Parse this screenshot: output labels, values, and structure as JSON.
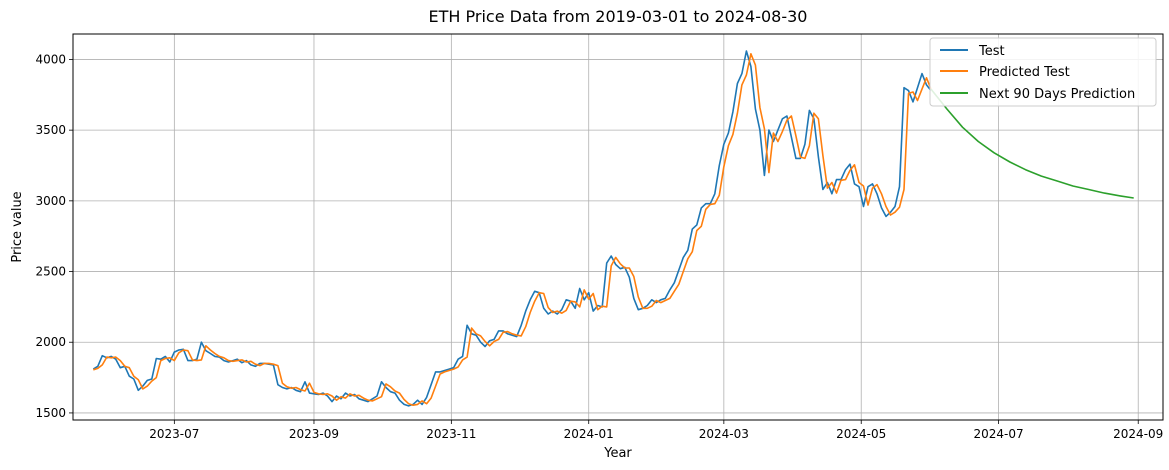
{
  "chart_data": {
    "type": "line",
    "title": "ETH Price Data from 2019-03-01 to 2024-08-30",
    "xlabel": "Year",
    "ylabel": "Price value",
    "x_type": "date",
    "xlim": [
      "2023-05-17",
      "2024-09-12"
    ],
    "ylim": [
      1450,
      4180
    ],
    "xticks": [
      "2023-07-01",
      "2023-09-01",
      "2023-11-01",
      "2024-01-01",
      "2024-03-01",
      "2024-05-01",
      "2024-07-01",
      "2024-09-01"
    ],
    "xtick_labels": [
      "2023-07",
      "2023-09",
      "2023-11",
      "2024-01",
      "2024-03",
      "2024-05",
      "2024-07",
      "2024-09"
    ],
    "yticks": [
      1500,
      2000,
      2500,
      3000,
      3500,
      4000
    ],
    "ytick_labels": [
      "1500",
      "2000",
      "2500",
      "3000",
      "3500",
      "4000"
    ],
    "grid": true,
    "legend_position": "top-right",
    "series": [
      {
        "name": "Test",
        "color": "#1f77b4",
        "x": [
          "2023-05-26",
          "2023-05-28",
          "2023-05-30",
          "2023-06-01",
          "2023-06-03",
          "2023-06-05",
          "2023-06-07",
          "2023-06-09",
          "2023-06-11",
          "2023-06-13",
          "2023-06-15",
          "2023-06-17",
          "2023-06-19",
          "2023-06-21",
          "2023-06-23",
          "2023-06-25",
          "2023-06-27",
          "2023-06-29",
          "2023-07-01",
          "2023-07-03",
          "2023-07-05",
          "2023-07-07",
          "2023-07-09",
          "2023-07-11",
          "2023-07-13",
          "2023-07-15",
          "2023-07-17",
          "2023-07-19",
          "2023-07-21",
          "2023-07-23",
          "2023-07-25",
          "2023-07-27",
          "2023-07-29",
          "2023-07-31",
          "2023-08-02",
          "2023-08-04",
          "2023-08-06",
          "2023-08-08",
          "2023-08-10",
          "2023-08-12",
          "2023-08-14",
          "2023-08-16",
          "2023-08-18",
          "2023-08-20",
          "2023-08-22",
          "2023-08-24",
          "2023-08-26",
          "2023-08-28",
          "2023-08-30",
          "2023-09-01",
          "2023-09-03",
          "2023-09-05",
          "2023-09-07",
          "2023-09-09",
          "2023-09-11",
          "2023-09-13",
          "2023-09-15",
          "2023-09-17",
          "2023-09-19",
          "2023-09-21",
          "2023-09-23",
          "2023-09-25",
          "2023-09-27",
          "2023-09-29",
          "2023-10-01",
          "2023-10-03",
          "2023-10-05",
          "2023-10-07",
          "2023-10-09",
          "2023-10-11",
          "2023-10-13",
          "2023-10-15",
          "2023-10-17",
          "2023-10-19",
          "2023-10-21",
          "2023-10-23",
          "2023-10-25",
          "2023-10-27",
          "2023-10-29",
          "2023-10-31",
          "2023-11-02",
          "2023-11-04",
          "2023-11-06",
          "2023-11-08",
          "2023-11-10",
          "2023-11-12",
          "2023-11-14",
          "2023-11-16",
          "2023-11-18",
          "2023-11-20",
          "2023-11-22",
          "2023-11-24",
          "2023-11-26",
          "2023-11-28",
          "2023-11-30",
          "2023-12-02",
          "2023-12-04",
          "2023-12-06",
          "2023-12-08",
          "2023-12-10",
          "2023-12-12",
          "2023-12-14",
          "2023-12-16",
          "2023-12-18",
          "2023-12-20",
          "2023-12-22",
          "2023-12-24",
          "2023-12-26",
          "2023-12-28",
          "2023-12-30",
          "2024-01-01",
          "2024-01-03",
          "2024-01-05",
          "2024-01-07",
          "2024-01-09",
          "2024-01-11",
          "2024-01-13",
          "2024-01-15",
          "2024-01-17",
          "2024-01-19",
          "2024-01-21",
          "2024-01-23",
          "2024-01-25",
          "2024-01-27",
          "2024-01-29",
          "2024-01-31",
          "2024-02-02",
          "2024-02-04",
          "2024-02-06",
          "2024-02-08",
          "2024-02-10",
          "2024-02-12",
          "2024-02-14",
          "2024-02-16",
          "2024-02-18",
          "2024-02-20",
          "2024-02-22",
          "2024-02-24",
          "2024-02-26",
          "2024-02-28",
          "2024-03-01",
          "2024-03-03",
          "2024-03-05",
          "2024-03-07",
          "2024-03-09",
          "2024-03-11",
          "2024-03-13",
          "2024-03-15",
          "2024-03-17",
          "2024-03-19",
          "2024-03-21",
          "2024-03-23",
          "2024-03-25",
          "2024-03-27",
          "2024-03-29",
          "2024-03-31",
          "2024-04-02",
          "2024-04-04",
          "2024-04-06",
          "2024-04-08",
          "2024-04-10",
          "2024-04-12",
          "2024-04-14",
          "2024-04-16",
          "2024-04-18",
          "2024-04-20",
          "2024-04-22",
          "2024-04-24",
          "2024-04-26",
          "2024-04-28",
          "2024-04-30",
          "2024-05-02",
          "2024-05-04",
          "2024-05-06",
          "2024-05-08",
          "2024-05-10",
          "2024-05-12",
          "2024-05-14",
          "2024-05-16",
          "2024-05-18",
          "2024-05-20",
          "2024-05-22",
          "2024-05-24",
          "2024-05-26",
          "2024-05-28",
          "2024-05-30",
          "2024-06-01"
        ],
        "values": [
          1810,
          1830,
          1905,
          1890,
          1900,
          1880,
          1820,
          1830,
          1760,
          1740,
          1660,
          1690,
          1730,
          1740,
          1885,
          1880,
          1900,
          1860,
          1930,
          1945,
          1950,
          1870,
          1870,
          1880,
          2000,
          1940,
          1920,
          1900,
          1895,
          1870,
          1860,
          1870,
          1880,
          1855,
          1870,
          1840,
          1830,
          1850,
          1850,
          1845,
          1840,
          1700,
          1680,
          1670,
          1680,
          1660,
          1650,
          1720,
          1640,
          1635,
          1630,
          1640,
          1620,
          1580,
          1620,
          1600,
          1640,
          1620,
          1630,
          1600,
          1590,
          1580,
          1600,
          1620,
          1720,
          1680,
          1650,
          1640,
          1590,
          1560,
          1550,
          1560,
          1590,
          1560,
          1610,
          1700,
          1790,
          1790,
          1800,
          1810,
          1820,
          1880,
          1900,
          2120,
          2060,
          2050,
          2000,
          1970,
          2010,
          2020,
          2080,
          2080,
          2060,
          2050,
          2040,
          2120,
          2220,
          2300,
          2360,
          2350,
          2240,
          2200,
          2220,
          2200,
          2230,
          2300,
          2290,
          2240,
          2380,
          2300,
          2350,
          2220,
          2260,
          2250,
          2560,
          2610,
          2550,
          2520,
          2530,
          2460,
          2310,
          2230,
          2240,
          2260,
          2300,
          2280,
          2300,
          2310,
          2370,
          2420,
          2510,
          2600,
          2650,
          2800,
          2830,
          2950,
          2980,
          2980,
          3050,
          3250,
          3400,
          3480,
          3630,
          3830,
          3900,
          4060,
          3950,
          3650,
          3500,
          3180,
          3500,
          3420,
          3500,
          3580,
          3600,
          3450,
          3300,
          3300,
          3400,
          3640,
          3580,
          3310,
          3080,
          3130,
          3050,
          3150,
          3150,
          3220,
          3260,
          3120,
          3100,
          2960,
          3100,
          3120,
          3050,
          2950,
          2890,
          2920,
          2960,
          3100,
          3800,
          3780,
          3700,
          3800,
          3900,
          3820,
          3780
        ]
      },
      {
        "name": "Predicted Test",
        "color": "#ff7f0e",
        "x": [
          "2023-05-26",
          "2023-05-28",
          "2023-05-30",
          "2023-06-01",
          "2023-06-03",
          "2023-06-05",
          "2023-06-07",
          "2023-06-09",
          "2023-06-11",
          "2023-06-13",
          "2023-06-15",
          "2023-06-17",
          "2023-06-19",
          "2023-06-21",
          "2023-06-23",
          "2023-06-25",
          "2023-06-27",
          "2023-06-29",
          "2023-07-01",
          "2023-07-03",
          "2023-07-05",
          "2023-07-07",
          "2023-07-09",
          "2023-07-11",
          "2023-07-13",
          "2023-07-15",
          "2023-07-17",
          "2023-07-19",
          "2023-07-21",
          "2023-07-23",
          "2023-07-25",
          "2023-07-27",
          "2023-07-29",
          "2023-07-31",
          "2023-08-02",
          "2023-08-04",
          "2023-08-06",
          "2023-08-08",
          "2023-08-10",
          "2023-08-12",
          "2023-08-14",
          "2023-08-16",
          "2023-08-18",
          "2023-08-20",
          "2023-08-22",
          "2023-08-24",
          "2023-08-26",
          "2023-08-28",
          "2023-08-30",
          "2023-09-01",
          "2023-09-03",
          "2023-09-05",
          "2023-09-07",
          "2023-09-09",
          "2023-09-11",
          "2023-09-13",
          "2023-09-15",
          "2023-09-17",
          "2023-09-19",
          "2023-09-21",
          "2023-09-23",
          "2023-09-25",
          "2023-09-27",
          "2023-09-29",
          "2023-10-01",
          "2023-10-03",
          "2023-10-05",
          "2023-10-07",
          "2023-10-09",
          "2023-10-11",
          "2023-10-13",
          "2023-10-15",
          "2023-10-17",
          "2023-10-19",
          "2023-10-21",
          "2023-10-23",
          "2023-10-25",
          "2023-10-27",
          "2023-10-29",
          "2023-10-31",
          "2023-11-02",
          "2023-11-04",
          "2023-11-06",
          "2023-11-08",
          "2023-11-10",
          "2023-11-12",
          "2023-11-14",
          "2023-11-16",
          "2023-11-18",
          "2023-11-20",
          "2023-11-22",
          "2023-11-24",
          "2023-11-26",
          "2023-11-28",
          "2023-11-30",
          "2023-12-02",
          "2023-12-04",
          "2023-12-06",
          "2023-12-08",
          "2023-12-10",
          "2023-12-12",
          "2023-12-14",
          "2023-12-16",
          "2023-12-18",
          "2023-12-20",
          "2023-12-22",
          "2023-12-24",
          "2023-12-26",
          "2023-12-28",
          "2023-12-30",
          "2024-01-01",
          "2024-01-03",
          "2024-01-05",
          "2024-01-07",
          "2024-01-09",
          "2024-01-11",
          "2024-01-13",
          "2024-01-15",
          "2024-01-17",
          "2024-01-19",
          "2024-01-21",
          "2024-01-23",
          "2024-01-25",
          "2024-01-27",
          "2024-01-29",
          "2024-01-31",
          "2024-02-02",
          "2024-02-04",
          "2024-02-06",
          "2024-02-08",
          "2024-02-10",
          "2024-02-12",
          "2024-02-14",
          "2024-02-16",
          "2024-02-18",
          "2024-02-20",
          "2024-02-22",
          "2024-02-24",
          "2024-02-26",
          "2024-02-28",
          "2024-03-01",
          "2024-03-03",
          "2024-03-05",
          "2024-03-07",
          "2024-03-09",
          "2024-03-11",
          "2024-03-13",
          "2024-03-15",
          "2024-03-17",
          "2024-03-19",
          "2024-03-21",
          "2024-03-23",
          "2024-03-25",
          "2024-03-27",
          "2024-03-29",
          "2024-03-31",
          "2024-04-02",
          "2024-04-04",
          "2024-04-06",
          "2024-04-08",
          "2024-04-10",
          "2024-04-12",
          "2024-04-14",
          "2024-04-16",
          "2024-04-18",
          "2024-04-20",
          "2024-04-22",
          "2024-04-24",
          "2024-04-26",
          "2024-04-28",
          "2024-04-30",
          "2024-05-02",
          "2024-05-04",
          "2024-05-06",
          "2024-05-08",
          "2024-05-10",
          "2024-05-12",
          "2024-05-14",
          "2024-05-16",
          "2024-05-18",
          "2024-05-20",
          "2024-05-22",
          "2024-05-24",
          "2024-05-26",
          "2024-05-28",
          "2024-05-30",
          "2024-06-01"
        ],
        "values": [
          1805,
          1815,
          1840,
          1895,
          1890,
          1895,
          1870,
          1830,
          1820,
          1760,
          1735,
          1670,
          1690,
          1725,
          1750,
          1870,
          1885,
          1890,
          1870,
          1925,
          1945,
          1940,
          1875,
          1870,
          1875,
          1975,
          1945,
          1920,
          1900,
          1890,
          1870,
          1865,
          1870,
          1875,
          1860,
          1865,
          1845,
          1835,
          1850,
          1850,
          1845,
          1835,
          1710,
          1685,
          1675,
          1680,
          1665,
          1655,
          1710,
          1645,
          1635,
          1630,
          1635,
          1620,
          1590,
          1615,
          1605,
          1635,
          1620,
          1625,
          1605,
          1590,
          1585,
          1600,
          1615,
          1705,
          1685,
          1655,
          1640,
          1595,
          1565,
          1555,
          1560,
          1585,
          1565,
          1605,
          1690,
          1775,
          1790,
          1800,
          1810,
          1825,
          1875,
          1895,
          2100,
          2060,
          2045,
          2005,
          1975,
          2005,
          2020,
          2070,
          2075,
          2060,
          2050,
          2045,
          2110,
          2210,
          2290,
          2350,
          2345,
          2245,
          2210,
          2220,
          2205,
          2225,
          2290,
          2285,
          2250,
          2370,
          2305,
          2345,
          2230,
          2255,
          2250,
          2540,
          2600,
          2555,
          2525,
          2525,
          2465,
          2320,
          2240,
          2240,
          2255,
          2295,
          2280,
          2295,
          2310,
          2360,
          2410,
          2500,
          2590,
          2640,
          2790,
          2820,
          2940,
          2975,
          2980,
          3040,
          3240,
          3390,
          3470,
          3620,
          3820,
          3890,
          4040,
          3960,
          3660,
          3510,
          3200,
          3480,
          3420,
          3490,
          3570,
          3600,
          3460,
          3310,
          3300,
          3390,
          3620,
          3580,
          3320,
          3090,
          3130,
          3055,
          3145,
          3150,
          3215,
          3255,
          3130,
          3105,
          2970,
          3090,
          3115,
          3050,
          2960,
          2900,
          2920,
          2955,
          3080,
          3760,
          3770,
          3710,
          3790,
          3870,
          3790
        ]
      },
      {
        "name": "Next 90 Days Prediction",
        "color": "#2ca02c",
        "x": [
          "2024-06-01",
          "2024-06-08",
          "2024-06-15",
          "2024-06-22",
          "2024-06-29",
          "2024-07-06",
          "2024-07-13",
          "2024-07-20",
          "2024-07-27",
          "2024-08-03",
          "2024-08-10",
          "2024-08-17",
          "2024-08-24",
          "2024-08-30"
        ],
        "values": [
          3790,
          3650,
          3520,
          3420,
          3340,
          3275,
          3220,
          3175,
          3140,
          3105,
          3080,
          3055,
          3035,
          3020
        ]
      }
    ]
  }
}
